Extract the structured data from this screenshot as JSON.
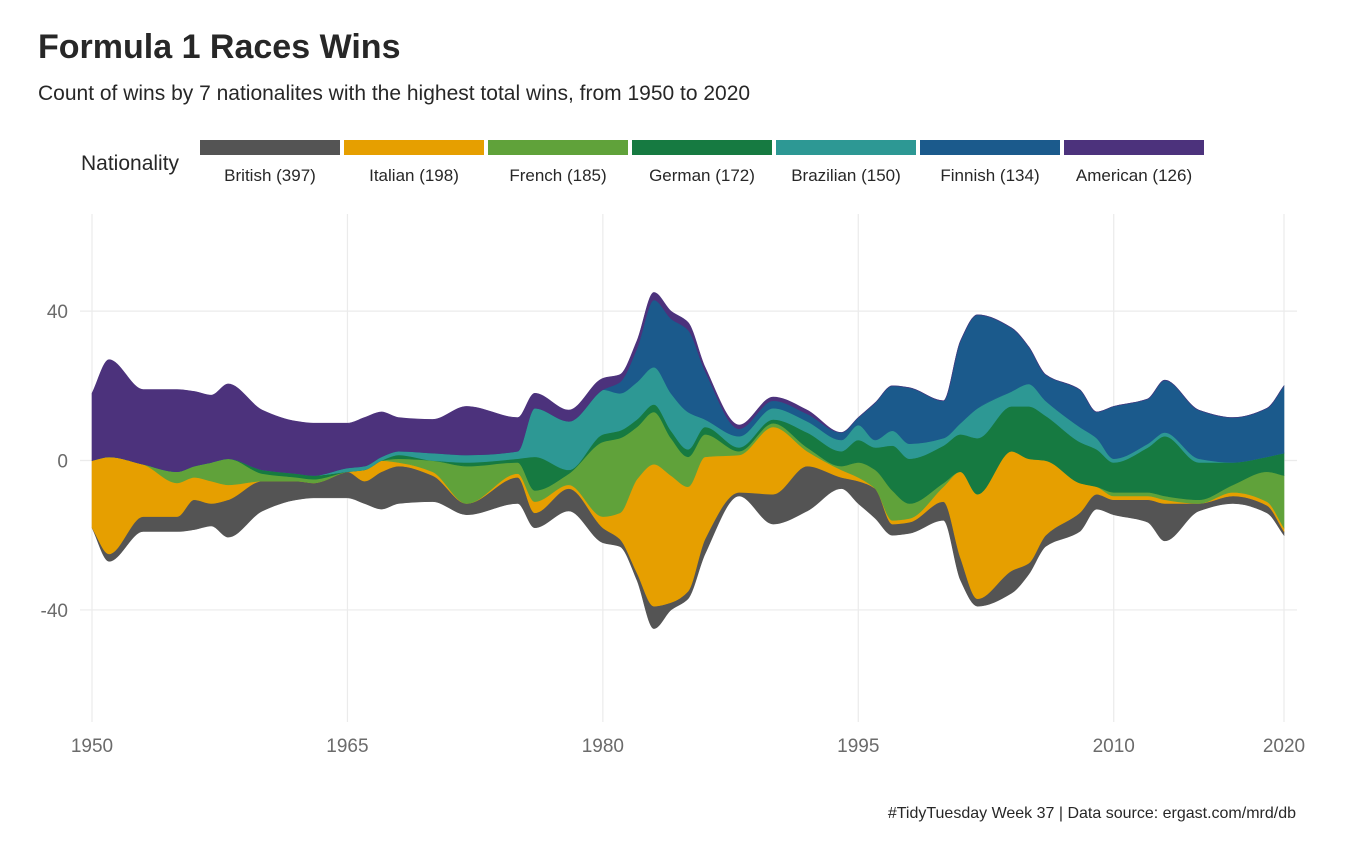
{
  "chart_data": {
    "type": "area",
    "subtype": "streamgraph",
    "title": "Formula 1 Races Wins",
    "subtitle": "Count of wins by 7 nationalites with the highest total wins, from 1950 to 2020",
    "caption": "#TidyTuesday Week 37 | Data source: ergast.com/mrd/db",
    "legend_title": "Nationality",
    "legend_position": "top",
    "xlim": [
      1950,
      2020
    ],
    "ylim": [
      -70,
      66
    ],
    "x_ticks": [
      1950,
      1965,
      1980,
      1995,
      2010,
      2020
    ],
    "y_ticks": [
      -40,
      0,
      40
    ],
    "y_tick_labels": [
      "-40",
      "0",
      "40"
    ],
    "grid": true,
    "baseline": "centered",
    "x": [
      1950,
      1951,
      1953,
      1955,
      1956,
      1957,
      1958,
      1960,
      1962,
      1963,
      1965,
      1966,
      1967,
      1968,
      1970,
      1972,
      1975,
      1976,
      1978,
      1980,
      1981,
      1982,
      1983,
      1984,
      1985,
      1986,
      1988,
      1990,
      1992,
      1994,
      1995,
      1996,
      1997,
      1998,
      2000,
      2001,
      2002,
      2004,
      2005,
      2006,
      2008,
      2009,
      2010,
      2012,
      2013,
      2015,
      2017,
      2019,
      2020
    ],
    "series": [
      {
        "name": "British (397)",
        "color": "#545454",
        "values": [
          0,
          2,
          4,
          4,
          8,
          6,
          10,
          8,
          5,
          4,
          7,
          6,
          10,
          10,
          7,
          3,
          7,
          4,
          6,
          4,
          2,
          2,
          6,
          2,
          2,
          4,
          1,
          8,
          12,
          3,
          6,
          8,
          3,
          3,
          5,
          6,
          2,
          6,
          3,
          3,
          5,
          4,
          4,
          6,
          10,
          2,
          2,
          2,
          1
        ]
      },
      {
        "name": "Italian (198)",
        "color": "#e69f00",
        "values": [
          18,
          26,
          14,
          9,
          6,
          6,
          4,
          0,
          0,
          0,
          0,
          3,
          3,
          1,
          1,
          0,
          1,
          3,
          1,
          3,
          7,
          25,
          38,
          34,
          28,
          22,
          10,
          18,
          4,
          2,
          1,
          0,
          1,
          1,
          4,
          23,
          28,
          32,
          28,
          20,
          8,
          2,
          1,
          1,
          1,
          0,
          1,
          1,
          1
        ]
      },
      {
        "name": "French (185)",
        "color": "#60a23a",
        "values": [
          0,
          0,
          0,
          3,
          3,
          5,
          7,
          2,
          1,
          1,
          0,
          0,
          0,
          1,
          3,
          10,
          3,
          3,
          3,
          20,
          20,
          14,
          14,
          10,
          8,
          6,
          1,
          1,
          1,
          1,
          4,
          5,
          8,
          4,
          1,
          0,
          0,
          0,
          0,
          0,
          0,
          0,
          1,
          1,
          1,
          1,
          2,
          8,
          14
        ]
      },
      {
        "name": "German (172)",
        "color": "#167a41",
        "values": [
          0,
          0,
          0,
          0,
          0,
          0,
          0,
          1,
          1,
          1,
          0,
          0,
          0,
          1,
          0,
          1,
          1,
          9,
          1,
          2,
          2,
          2,
          2,
          2,
          2,
          2,
          1,
          1,
          4,
          4,
          6,
          6,
          12,
          12,
          10,
          10,
          15,
          12,
          14,
          12,
          11,
          10,
          8,
          12,
          16,
          10,
          6,
          4,
          6
        ]
      },
      {
        "name": "Brazilian (150)",
        "color": "#2d9894",
        "values": [
          0,
          0,
          0,
          0,
          0,
          0,
          0,
          0,
          0,
          0,
          1,
          1,
          1,
          1,
          2,
          2,
          2,
          13,
          13,
          12,
          10,
          10,
          10,
          10,
          10,
          2,
          3,
          3,
          3,
          3,
          4,
          2,
          4,
          4,
          2,
          3,
          8,
          4,
          6,
          4,
          4,
          3,
          1,
          1,
          1,
          1,
          0,
          0,
          0
        ]
      },
      {
        "name": "Finnish (134)",
        "color": "#1b5a8c",
        "values": [
          0,
          0,
          0,
          0,
          0,
          0,
          0,
          0,
          0,
          0,
          0,
          0,
          0,
          0,
          0,
          0,
          0,
          0,
          0,
          0,
          3,
          9,
          18,
          20,
          22,
          13,
          2,
          2,
          2,
          2,
          2,
          10,
          12,
          15,
          10,
          22,
          25,
          17,
          10,
          7,
          10,
          7,
          14,
          12,
          14,
          13,
          12,
          13,
          18
        ]
      },
      {
        "name": "American (126)",
        "color": "#4c327c",
        "values": [
          18,
          26,
          20,
          22,
          20,
          18,
          20,
          16,
          14,
          14,
          12,
          13,
          12,
          9,
          9,
          13,
          9,
          4,
          3,
          3,
          2,
          2,
          2,
          2,
          2,
          1,
          1,
          1,
          1,
          0,
          0,
          0,
          0,
          0,
          0,
          0,
          0,
          0,
          0,
          0,
          0,
          0,
          0,
          0,
          0,
          0,
          0,
          0,
          0
        ]
      }
    ]
  }
}
